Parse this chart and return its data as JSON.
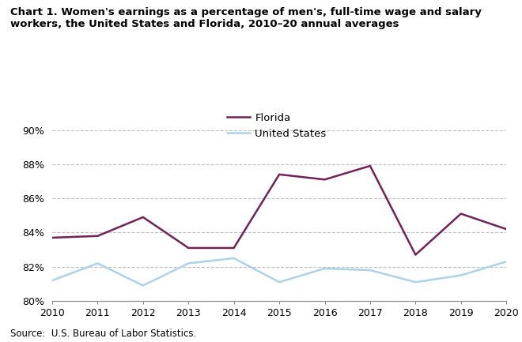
{
  "years": [
    2010,
    2011,
    2012,
    2013,
    2014,
    2015,
    2016,
    2017,
    2018,
    2019,
    2020
  ],
  "florida": [
    83.7,
    83.8,
    84.9,
    83.1,
    83.1,
    87.4,
    87.1,
    87.9,
    82.7,
    85.1,
    84.2
  ],
  "us": [
    81.2,
    82.2,
    80.9,
    82.2,
    82.5,
    81.1,
    81.9,
    81.8,
    81.1,
    81.5,
    82.3
  ],
  "florida_color": "#722257",
  "us_color": "#aad3e8",
  "title": "Chart 1. Women's earnings as a percentage of men's, full-time wage and salary\nworkers, the United States and Florida, 2010–20 annual averages",
  "legend_florida": "Florida",
  "legend_us": "United States",
  "source": "Source:  U.S. Bureau of Labor Statistics.",
  "ylim": [
    80,
    90
  ],
  "yticks": [
    80,
    82,
    84,
    86,
    88,
    90
  ],
  "xlim": [
    2010,
    2020
  ],
  "line_width": 1.8,
  "bg_color": "#ffffff",
  "grid_color": "#c0c0c0"
}
